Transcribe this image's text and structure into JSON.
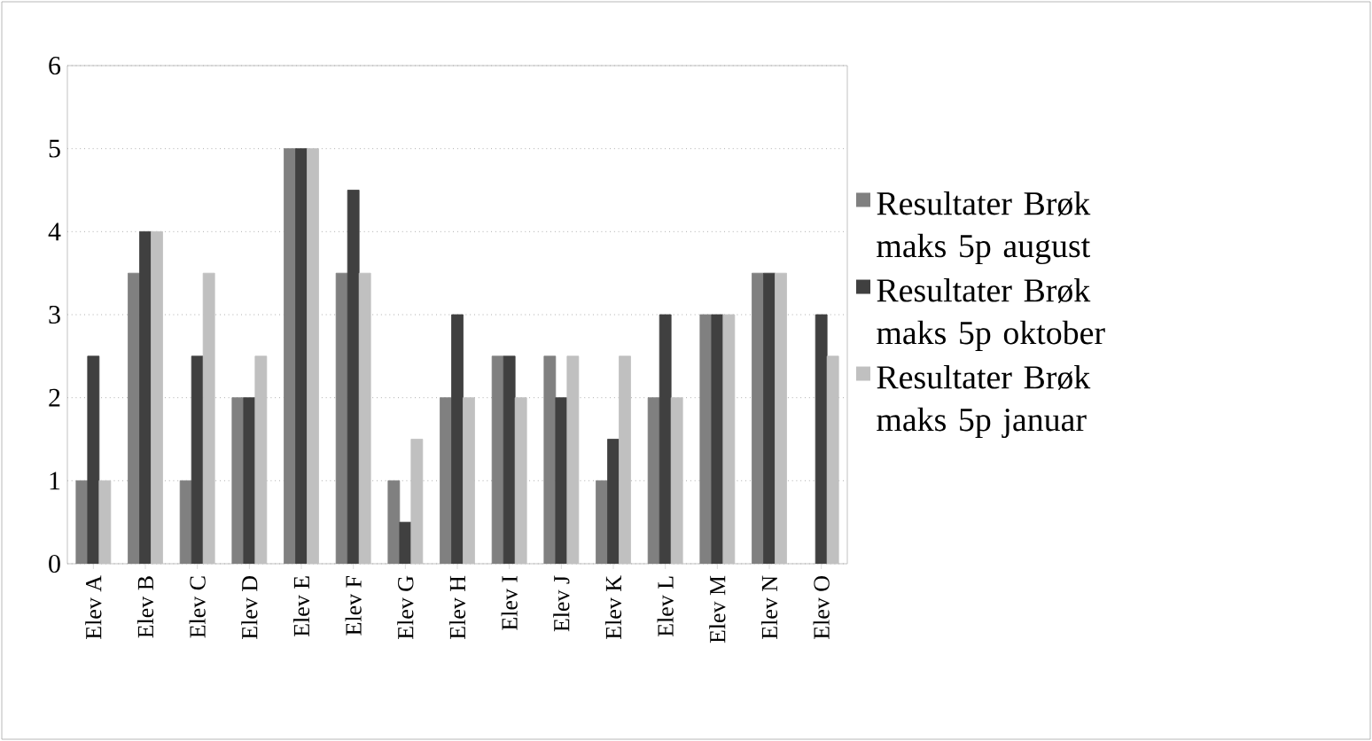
{
  "chart_data": {
    "type": "bar",
    "categories": [
      "Elev A",
      "Elev B",
      "Elev C",
      "Elev D",
      "Elev E",
      "Elev F",
      "Elev G",
      "Elev H",
      "Elev I",
      "Elev J",
      "Elev K",
      "Elev L",
      "Elev M",
      "Elev N",
      "Elev O"
    ],
    "series": [
      {
        "name": "Resultater Brøk maks 5p august",
        "color": "#808080",
        "values": [
          1,
          3.5,
          1,
          2,
          5,
          3.5,
          1,
          2,
          2.5,
          2.5,
          1,
          2,
          3,
          3.5,
          null
        ]
      },
      {
        "name": "Resultater Brøk maks 5p oktober",
        "color": "#404040",
        "values": [
          2.5,
          4,
          2.5,
          2,
          5,
          4.5,
          0.5,
          3,
          2.5,
          2,
          1.5,
          3,
          3,
          3.5,
          3
        ]
      },
      {
        "name": "Resultater Brøk maks 5p januar",
        "color": "#c0c0c0",
        "values": [
          1,
          4,
          3.5,
          2.5,
          5,
          3.5,
          1.5,
          2,
          2,
          2.5,
          2.5,
          2,
          3,
          3.5,
          2.5
        ]
      }
    ],
    "ylim": [
      0,
      6
    ],
    "yticks": [
      0,
      1,
      2,
      3,
      4,
      5,
      6
    ],
    "grid": "y",
    "legend": "right"
  }
}
